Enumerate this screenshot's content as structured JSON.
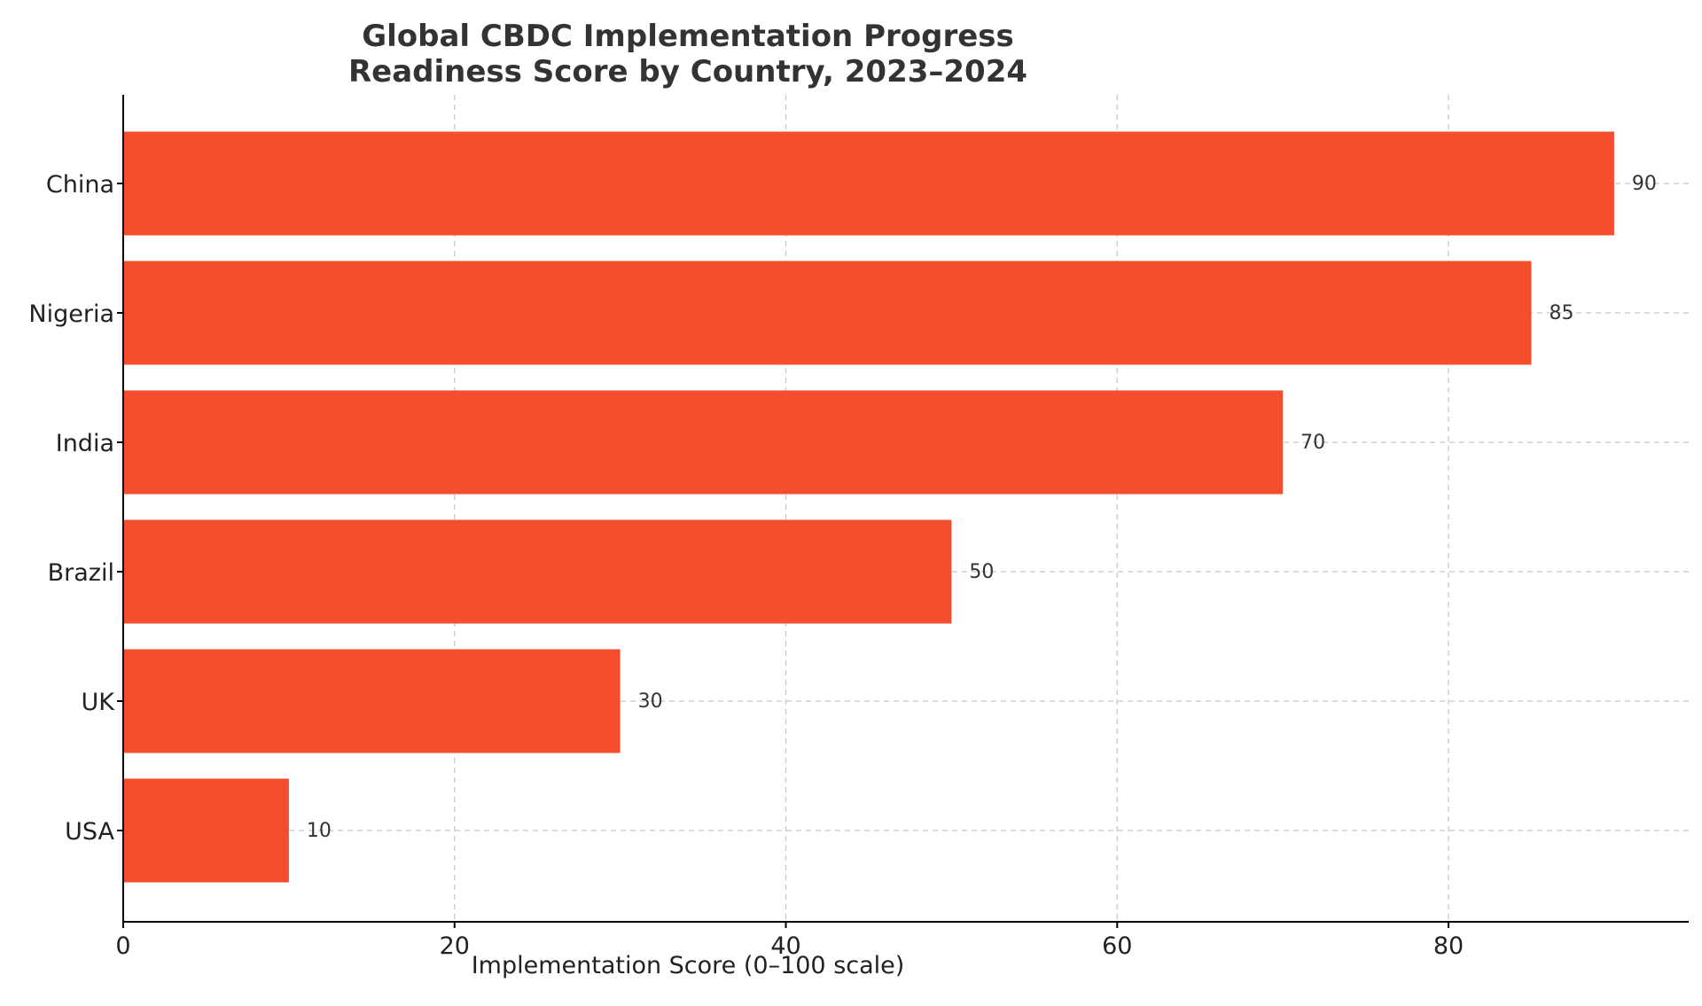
{
  "chart_data": {
    "type": "bar",
    "orientation": "horizontal",
    "title_line1": "Global CBDC Implementation Progress",
    "title_line2": "Readiness Score by Country, 2023–2024",
    "xlabel": "Implementation Score (0–100 scale)",
    "ylabel": "",
    "categories": [
      "China",
      "Nigeria",
      "India",
      "Brazil",
      "UK",
      "USA"
    ],
    "values": [
      90,
      85,
      70,
      50,
      30,
      10
    ],
    "data_labels": [
      "90",
      "85",
      "70",
      "50",
      "30",
      "10"
    ],
    "xticks": [
      0,
      20,
      40,
      60,
      80
    ],
    "xtick_labels": [
      "0",
      "20",
      "40",
      "60",
      "80"
    ],
    "xlim": [
      0,
      94.5
    ],
    "bar_color": "#f44e2e",
    "grid": true
  }
}
